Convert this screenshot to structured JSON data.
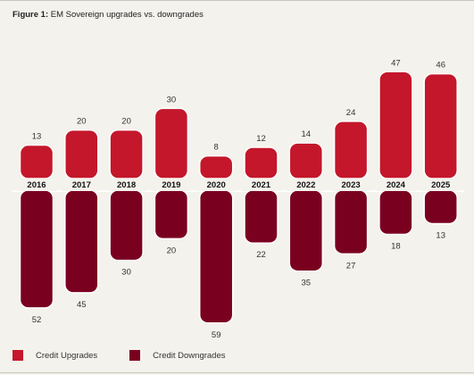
{
  "figure": {
    "label": "Figure 1:",
    "title": "EM Sovereign upgrades vs. downgrades"
  },
  "colors": {
    "upgrade": "#c4172b",
    "downgrade": "#7a0020",
    "background": "#f4f2ec"
  },
  "legend": {
    "upgrades": "Credit Upgrades",
    "downgrades": "Credit Downgrades"
  },
  "chart_data": {
    "type": "bar",
    "title": "EM Sovereign upgrades vs. downgrades",
    "categories": [
      "2016",
      "2017",
      "2018",
      "2019",
      "2020",
      "2021",
      "2022",
      "2023",
      "2024",
      "2025"
    ],
    "series": [
      {
        "name": "Credit Upgrades",
        "values": [
          13,
          20,
          20,
          30,
          8,
          12,
          14,
          24,
          47,
          46
        ]
      },
      {
        "name": "Credit Downgrades",
        "values": [
          52,
          45,
          30,
          20,
          59,
          22,
          35,
          27,
          18,
          13
        ]
      }
    ],
    "layout": "diverging-around-year-axis",
    "grid": false,
    "legend_position": "bottom-left"
  }
}
